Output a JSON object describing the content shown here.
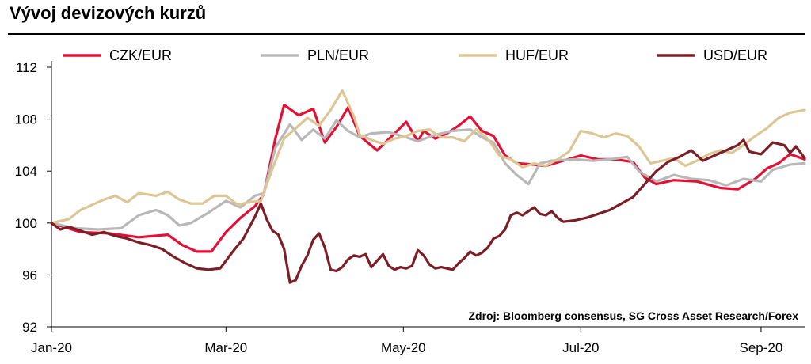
{
  "title": "Vývoj devizových kurzů",
  "source": "Zdroj: Bloomberg consensus, SG Cross Asset Research/Forex",
  "chart_data": {
    "type": "line",
    "x_type": "time",
    "x_ticks": [
      {
        "label": "Jan-20",
        "pos": 0
      },
      {
        "label": "Mar-20",
        "pos": 60
      },
      {
        "label": "May-20",
        "pos": 121
      },
      {
        "label": "Jul-20",
        "pos": 182
      },
      {
        "label": "Sep-20",
        "pos": 244
      }
    ],
    "x_range": [
      0,
      259
    ],
    "y_ticks": [
      92,
      96,
      100,
      104,
      108,
      112
    ],
    "ylim": [
      92,
      112
    ],
    "grid": false,
    "legend": "top",
    "series": [
      {
        "name": "CZK/EUR",
        "color": "#e30f34",
        "points": [
          [
            0,
            100
          ],
          [
            10,
            99.3
          ],
          [
            20,
            99.2
          ],
          [
            30,
            98.9
          ],
          [
            40,
            99.1
          ],
          [
            45,
            98.3
          ],
          [
            50,
            97.8
          ],
          [
            55,
            97.8
          ],
          [
            60,
            99.3
          ],
          [
            65,
            100.4
          ],
          [
            70,
            101.3
          ],
          [
            73,
            102.2
          ],
          [
            77,
            106.5
          ],
          [
            80,
            109.1
          ],
          [
            85,
            108.3
          ],
          [
            90,
            108.8
          ],
          [
            94,
            106.2
          ],
          [
            98,
            107.4
          ],
          [
            102,
            108.9
          ],
          [
            106,
            106.7
          ],
          [
            112,
            105.6
          ],
          [
            118,
            106.9
          ],
          [
            122,
            107.8
          ],
          [
            126,
            106.3
          ],
          [
            128,
            107.1
          ],
          [
            132,
            106.5
          ],
          [
            136,
            106.9
          ],
          [
            140,
            107.5
          ],
          [
            144,
            108.2
          ],
          [
            148,
            107.1
          ],
          [
            152,
            106.7
          ],
          [
            156,
            105.2
          ],
          [
            160,
            104.6
          ],
          [
            166,
            104.5
          ],
          [
            170,
            104.4
          ],
          [
            176,
            104.8
          ],
          [
            182,
            105.2
          ],
          [
            188,
            104.9
          ],
          [
            194,
            104.9
          ],
          [
            200,
            104.7
          ],
          [
            204,
            103.5
          ],
          [
            208,
            103.0
          ],
          [
            214,
            103.3
          ],
          [
            222,
            103.2
          ],
          [
            230,
            102.7
          ],
          [
            236,
            102.6
          ],
          [
            242,
            103.4
          ],
          [
            246,
            104.2
          ],
          [
            250,
            104.6
          ],
          [
            254,
            105.3
          ],
          [
            259,
            104.9
          ]
        ]
      },
      {
        "name": "PLN/EUR",
        "color": "#b8b8b8",
        "points": [
          [
            0,
            100
          ],
          [
            8,
            99.6
          ],
          [
            16,
            99.5
          ],
          [
            24,
            99.6
          ],
          [
            30,
            100.6
          ],
          [
            36,
            101.0
          ],
          [
            40,
            100.6
          ],
          [
            44,
            99.8
          ],
          [
            48,
            100.0
          ],
          [
            54,
            100.8
          ],
          [
            60,
            101.7
          ],
          [
            65,
            101.2
          ],
          [
            70,
            102.1
          ],
          [
            73,
            102.3
          ],
          [
            77,
            105.8
          ],
          [
            82,
            107.6
          ],
          [
            86,
            106.4
          ],
          [
            90,
            107.2
          ],
          [
            94,
            106.5
          ],
          [
            98,
            107.9
          ],
          [
            102,
            107.1
          ],
          [
            106,
            106.6
          ],
          [
            110,
            106.9
          ],
          [
            116,
            107.0
          ],
          [
            122,
            106.6
          ],
          [
            126,
            106.3
          ],
          [
            132,
            106.8
          ],
          [
            138,
            107.1
          ],
          [
            144,
            107.2
          ],
          [
            148,
            106.6
          ],
          [
            152,
            106.2
          ],
          [
            156,
            104.6
          ],
          [
            160,
            103.7
          ],
          [
            164,
            103.0
          ],
          [
            168,
            104.6
          ],
          [
            172,
            104.8
          ],
          [
            180,
            104.9
          ],
          [
            186,
            104.8
          ],
          [
            192,
            104.9
          ],
          [
            198,
            105.1
          ],
          [
            202,
            104.0
          ],
          [
            208,
            103.2
          ],
          [
            214,
            103.7
          ],
          [
            220,
            103.4
          ],
          [
            226,
            103.3
          ],
          [
            232,
            102.9
          ],
          [
            238,
            103.4
          ],
          [
            244,
            103.2
          ],
          [
            248,
            104.1
          ],
          [
            254,
            104.5
          ],
          [
            259,
            104.6
          ]
        ]
      },
      {
        "name": "HUF/EUR",
        "color": "#dcc696",
        "points": [
          [
            0,
            100
          ],
          [
            6,
            100.3
          ],
          [
            10,
            101.0
          ],
          [
            14,
            101.4
          ],
          [
            18,
            101.8
          ],
          [
            22,
            102.1
          ],
          [
            26,
            101.6
          ],
          [
            30,
            102.3
          ],
          [
            36,
            102.1
          ],
          [
            40,
            102.4
          ],
          [
            44,
            101.8
          ],
          [
            48,
            101.5
          ],
          [
            52,
            101.5
          ],
          [
            56,
            102.1
          ],
          [
            60,
            102.1
          ],
          [
            64,
            101.4
          ],
          [
            68,
            101.6
          ],
          [
            72,
            101.7
          ],
          [
            76,
            104.2
          ],
          [
            80,
            106.5
          ],
          [
            84,
            107.3
          ],
          [
            88,
            108.1
          ],
          [
            92,
            107.5
          ],
          [
            96,
            108.7
          ],
          [
            100,
            110.2
          ],
          [
            104,
            108.2
          ],
          [
            106,
            106.8
          ],
          [
            110,
            106.4
          ],
          [
            114,
            106.1
          ],
          [
            118,
            106.5
          ],
          [
            122,
            106.7
          ],
          [
            126,
            107.1
          ],
          [
            130,
            107.2
          ],
          [
            134,
            106.6
          ],
          [
            138,
            106.6
          ],
          [
            142,
            106.3
          ],
          [
            146,
            107.2
          ],
          [
            150,
            106.5
          ],
          [
            154,
            105.2
          ],
          [
            158,
            104.9
          ],
          [
            162,
            104.3
          ],
          [
            166,
            104.6
          ],
          [
            170,
            104.4
          ],
          [
            174,
            104.9
          ],
          [
            178,
            105.5
          ],
          [
            182,
            107.1
          ],
          [
            186,
            106.9
          ],
          [
            190,
            106.6
          ],
          [
            194,
            106.9
          ],
          [
            198,
            106.7
          ],
          [
            202,
            105.9
          ],
          [
            206,
            104.6
          ],
          [
            210,
            104.8
          ],
          [
            214,
            105.0
          ],
          [
            218,
            104.4
          ],
          [
            222,
            104.8
          ],
          [
            226,
            105.3
          ],
          [
            230,
            105.6
          ],
          [
            234,
            105.4
          ],
          [
            238,
            106.0
          ],
          [
            242,
            106.7
          ],
          [
            246,
            107.3
          ],
          [
            250,
            108.1
          ],
          [
            254,
            108.5
          ],
          [
            259,
            108.7
          ]
        ]
      },
      {
        "name": "USD/EUR",
        "color": "#7b1e26",
        "points": [
          [
            0,
            100
          ],
          [
            3,
            99.5
          ],
          [
            6,
            99.7
          ],
          [
            10,
            99.4
          ],
          [
            14,
            99.1
          ],
          [
            18,
            99.3
          ],
          [
            22,
            99.0
          ],
          [
            26,
            98.8
          ],
          [
            30,
            98.5
          ],
          [
            34,
            98.3
          ],
          [
            38,
            98.0
          ],
          [
            42,
            97.4
          ],
          [
            46,
            96.9
          ],
          [
            50,
            96.5
          ],
          [
            54,
            96.4
          ],
          [
            58,
            96.5
          ],
          [
            62,
            97.7
          ],
          [
            66,
            98.8
          ],
          [
            70,
            100.5
          ],
          [
            72,
            101.5
          ],
          [
            74,
            100.3
          ],
          [
            76,
            99.4
          ],
          [
            78,
            99.1
          ],
          [
            80,
            98.0
          ],
          [
            82,
            95.4
          ],
          [
            84,
            95.6
          ],
          [
            86,
            96.7
          ],
          [
            88,
            97.5
          ],
          [
            90,
            98.7
          ],
          [
            92,
            99.2
          ],
          [
            94,
            98.1
          ],
          [
            96,
            96.4
          ],
          [
            98,
            96.3
          ],
          [
            100,
            96.6
          ],
          [
            102,
            97.2
          ],
          [
            104,
            97.5
          ],
          [
            106,
            97.4
          ],
          [
            108,
            97.6
          ],
          [
            110,
            96.6
          ],
          [
            112,
            97.1
          ],
          [
            114,
            97.6
          ],
          [
            116,
            96.7
          ],
          [
            118,
            96.4
          ],
          [
            120,
            96.6
          ],
          [
            122,
            96.5
          ],
          [
            124,
            96.7
          ],
          [
            126,
            97.9
          ],
          [
            128,
            97.5
          ],
          [
            130,
            96.8
          ],
          [
            132,
            96.5
          ],
          [
            134,
            96.6
          ],
          [
            136,
            96.5
          ],
          [
            138,
            96.4
          ],
          [
            140,
            96.9
          ],
          [
            142,
            97.3
          ],
          [
            144,
            97.8
          ],
          [
            146,
            97.5
          ],
          [
            148,
            97.7
          ],
          [
            150,
            98.1
          ],
          [
            152,
            98.8
          ],
          [
            154,
            99.0
          ],
          [
            156,
            99.5
          ],
          [
            158,
            100.6
          ],
          [
            160,
            100.8
          ],
          [
            162,
            100.6
          ],
          [
            164,
            100.9
          ],
          [
            166,
            101.2
          ],
          [
            168,
            100.7
          ],
          [
            170,
            100.6
          ],
          [
            172,
            100.9
          ],
          [
            174,
            100.4
          ],
          [
            176,
            100.1
          ],
          [
            180,
            100.2
          ],
          [
            184,
            100.4
          ],
          [
            188,
            100.7
          ],
          [
            192,
            101.0
          ],
          [
            196,
            101.5
          ],
          [
            200,
            102.0
          ],
          [
            204,
            103.0
          ],
          [
            208,
            104.0
          ],
          [
            212,
            104.7
          ],
          [
            216,
            105.1
          ],
          [
            220,
            105.6
          ],
          [
            224,
            104.8
          ],
          [
            228,
            105.2
          ],
          [
            232,
            105.6
          ],
          [
            236,
            106.0
          ],
          [
            238,
            106.4
          ],
          [
            240,
            105.5
          ],
          [
            244,
            105.3
          ],
          [
            248,
            106.2
          ],
          [
            252,
            106.0
          ],
          [
            254,
            105.4
          ],
          [
            256,
            105.9
          ],
          [
            259,
            105.0
          ]
        ]
      }
    ]
  }
}
